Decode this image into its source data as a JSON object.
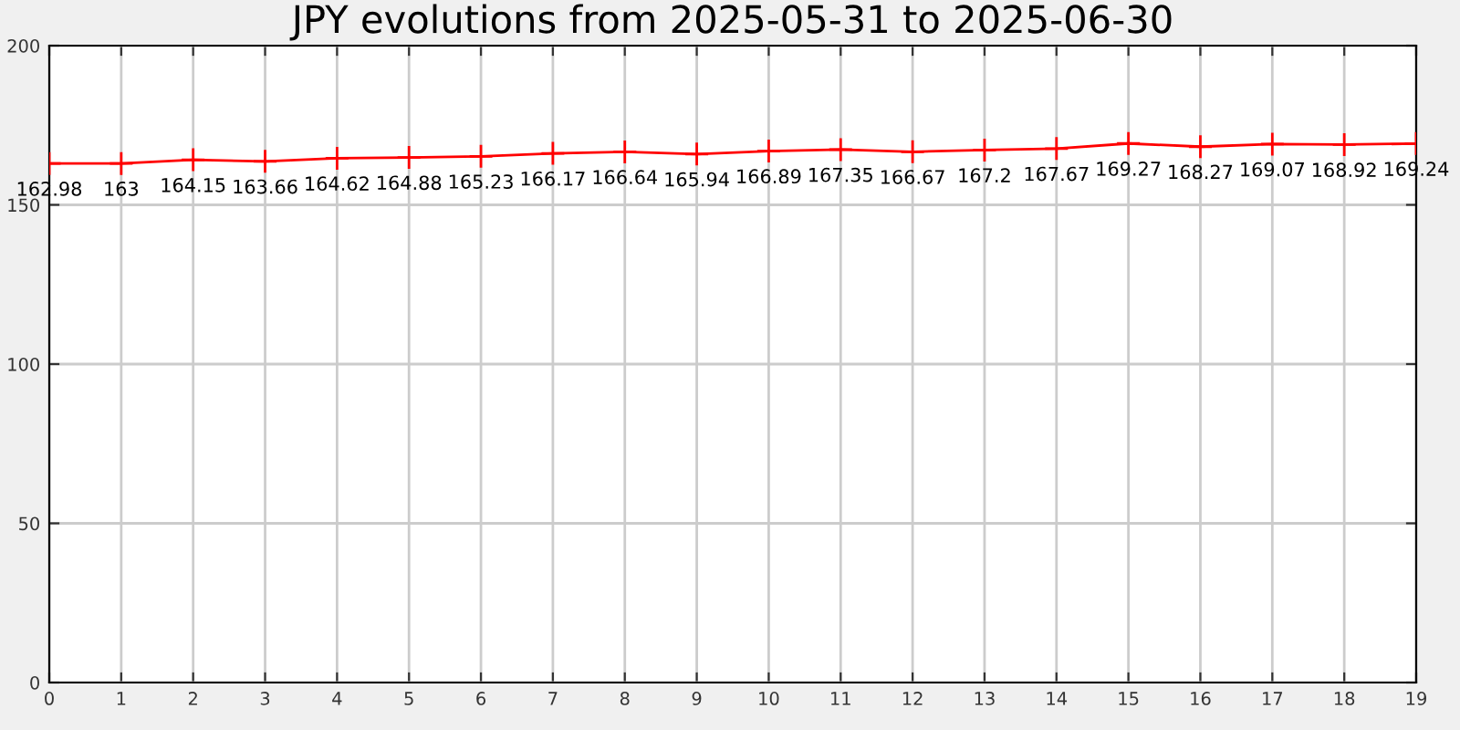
{
  "chart_data": {
    "type": "line",
    "title": "JPY evolutions from 2025-05-31 to 2025-06-30",
    "x": [
      0,
      1,
      2,
      3,
      4,
      5,
      6,
      7,
      8,
      9,
      10,
      11,
      12,
      13,
      14,
      15,
      16,
      17,
      18,
      19
    ],
    "series": [
      {
        "color": "#ff0000",
        "values": [
          162.98,
          163,
          164.15,
          163.66,
          164.62,
          164.88,
          165.23,
          166.17,
          166.64,
          165.94,
          166.89,
          167.35,
          166.67,
          167.2,
          167.67,
          169.27,
          168.27,
          169.07,
          168.92,
          169.24
        ]
      }
    ],
    "xlim": [
      0,
      19
    ],
    "xticks": [
      0,
      1,
      2,
      3,
      4,
      5,
      6,
      7,
      8,
      9,
      10,
      11,
      12,
      13,
      14,
      15,
      16,
      17,
      18,
      19
    ],
    "ylim": [
      0,
      200
    ],
    "yticks": [
      0,
      50,
      100,
      150,
      200
    ],
    "grid": true,
    "marker": "cross",
    "data_labels": true
  }
}
